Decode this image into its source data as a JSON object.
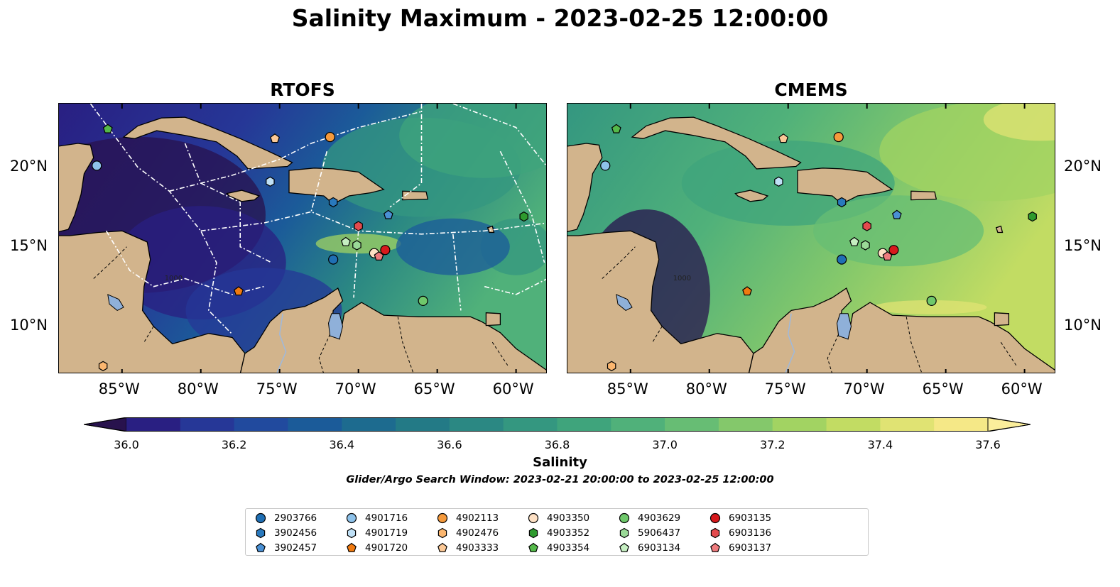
{
  "title": "Salinity Maximum - 2023-02-25 12:00:00",
  "panels": [
    {
      "title": "RTOFS",
      "style": "rtofs"
    },
    {
      "title": "CMEMS",
      "style": "cmems"
    }
  ],
  "axes": {
    "x_ticks": [
      "85°W",
      "80°W",
      "75°W",
      "70°W",
      "65°W",
      "60°W"
    ],
    "y_ticks": [
      "20°N",
      "15°N",
      "10°N"
    ],
    "lon_range": [
      -89,
      -58
    ],
    "lat_range": [
      7,
      24
    ]
  },
  "colorbar": {
    "label": "Salinity",
    "ticks": [
      "36.0",
      "36.2",
      "36.4",
      "36.6",
      "36.8",
      "37.0",
      "37.2",
      "37.4",
      "37.6"
    ],
    "range": [
      35.9,
      37.7
    ],
    "extend": "both"
  },
  "search_window": "Glider/Argo Search Window: 2023-02-21 20:00:00 to 2023-02-25 12:00:00",
  "contour_label": "1000",
  "colors": {
    "land": "#d2b48c",
    "lakes": "#8fb0d9",
    "rivers": "#9fb9dc",
    "boundary": "#ffffff"
  },
  "colormap": [
    "#28124d",
    "#291f82",
    "#263797",
    "#214a9e",
    "#1b5b99",
    "#1d6b8f",
    "#237a86",
    "#2b8883",
    "#349780",
    "#3fa47c",
    "#50b17a",
    "#67bd74",
    "#84c86b",
    "#a2d362",
    "#c2dc63",
    "#e0e373",
    "#f5e887",
    "#fbee9b"
  ],
  "floats": [
    {
      "id": "2903766",
      "marker": "circle",
      "color": "#1f6fb4",
      "lon": -71.6,
      "lat": 14.2
    },
    {
      "id": "3902456",
      "marker": "hexagon",
      "color": "#2979bd",
      "lon": -71.6,
      "lat": 17.8
    },
    {
      "id": "3902457",
      "marker": "pentagon",
      "color": "#4a90d4",
      "lon": -68.1,
      "lat": 17.0
    },
    {
      "id": "4901716",
      "marker": "circle",
      "color": "#8ec2ea",
      "lon": -86.6,
      "lat": 20.1
    },
    {
      "id": "4901719",
      "marker": "hexagon",
      "color": "#bfe0f6",
      "lon": -75.6,
      "lat": 19.1
    },
    {
      "id": "4901720",
      "marker": "pentagon",
      "color": "#f07a10",
      "lon": -77.6,
      "lat": 12.2
    },
    {
      "id": "4902113",
      "marker": "circle",
      "color": "#f59a3c",
      "lon": -71.8,
      "lat": 21.9
    },
    {
      "id": "4902476",
      "marker": "hexagon",
      "color": "#fbb66f",
      "lon": -86.2,
      "lat": 7.5
    },
    {
      "id": "4903333",
      "marker": "pentagon",
      "color": "#fcc997",
      "lon": -75.3,
      "lat": 21.8
    },
    {
      "id": "4903350",
      "marker": "circle",
      "color": "#fde0c4",
      "lon": -69.0,
      "lat": 14.6
    },
    {
      "id": "4903352",
      "marker": "hexagon",
      "color": "#2e9a2e",
      "lon": -59.5,
      "lat": 16.9
    },
    {
      "id": "4903354",
      "marker": "pentagon",
      "color": "#55b94a",
      "lon": -85.9,
      "lat": 22.4
    },
    {
      "id": "4903629",
      "marker": "circle",
      "color": "#6fc86b",
      "lon": -65.9,
      "lat": 11.6
    },
    {
      "id": "5906437",
      "marker": "hexagon",
      "color": "#9ad997",
      "lon": -70.1,
      "lat": 15.1
    },
    {
      "id": "6903134",
      "marker": "pentagon",
      "color": "#c5eec1",
      "lon": -70.8,
      "lat": 15.3
    },
    {
      "id": "6903135",
      "marker": "circle",
      "color": "#d7191c",
      "lon": -68.3,
      "lat": 14.8
    },
    {
      "id": "6903136",
      "marker": "hexagon",
      "color": "#e34a4d",
      "lon": -70.0,
      "lat": 16.3
    },
    {
      "id": "6903137",
      "marker": "pentagon",
      "color": "#ee7b7d",
      "lon": -68.7,
      "lat": 14.4
    }
  ]
}
